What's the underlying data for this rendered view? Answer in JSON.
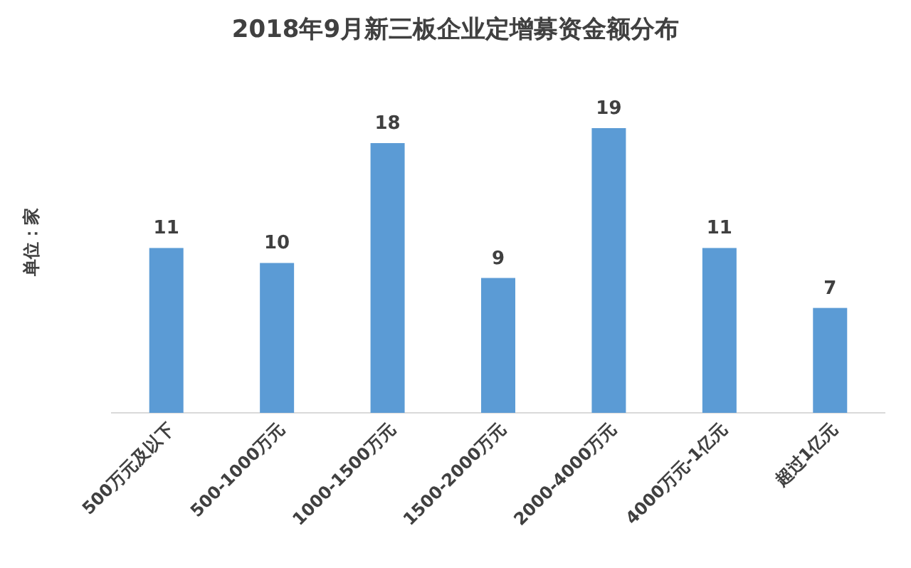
{
  "chart_data": {
    "type": "bar",
    "title": "2018年9月新三板企业定增募资金额分布",
    "ylabel": "单位：家",
    "categories": [
      "500万元及以下",
      "500-1000万元",
      "1000-1500万元",
      "1500-2000万元",
      "2000-4000万元",
      "4000万元-1亿元",
      "超过1亿元"
    ],
    "values": [
      11,
      10,
      18,
      9,
      19,
      11,
      7
    ],
    "color": "#5b9bd5",
    "data_labels": true
  }
}
